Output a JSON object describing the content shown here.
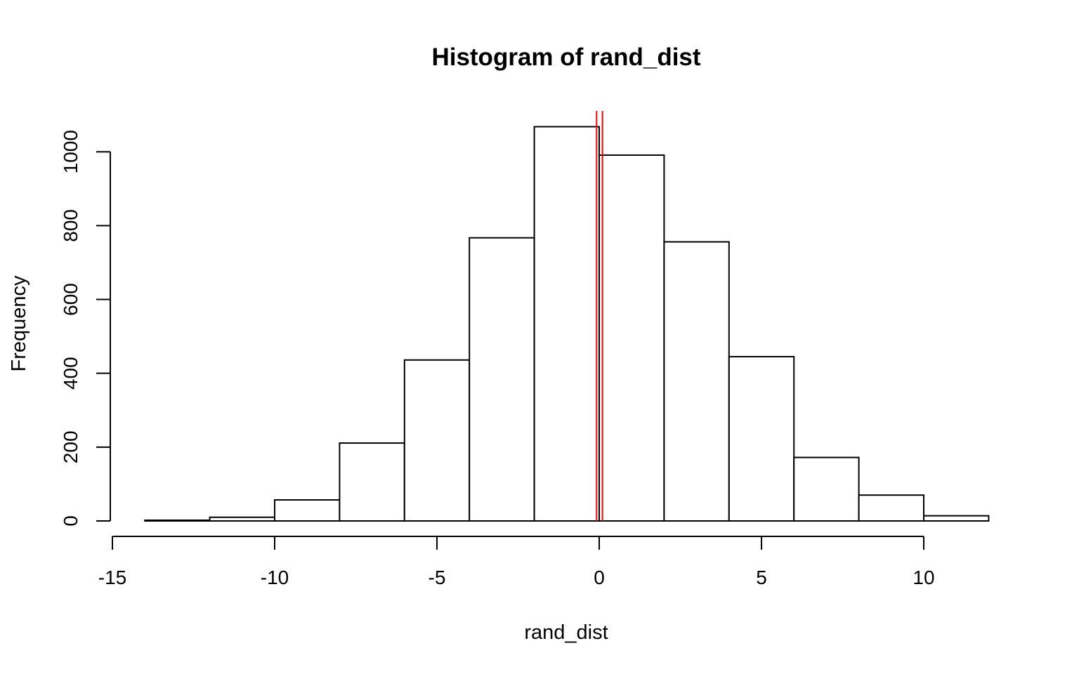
{
  "chart_data": {
    "type": "bar",
    "title": "Histogram of rand_dist",
    "xlabel": "rand_dist",
    "ylabel": "Frequency",
    "bins": [
      {
        "start": -14,
        "end": -12,
        "count": 2
      },
      {
        "start": -12,
        "end": -10,
        "count": 10
      },
      {
        "start": -10,
        "end": -8,
        "count": 57
      },
      {
        "start": -8,
        "end": -6,
        "count": 211
      },
      {
        "start": -6,
        "end": -4,
        "count": 436
      },
      {
        "start": -4,
        "end": -2,
        "count": 767
      },
      {
        "start": -2,
        "end": 0,
        "count": 1068
      },
      {
        "start": 0,
        "end": 2,
        "count": 991
      },
      {
        "start": 2,
        "end": 4,
        "count": 756
      },
      {
        "start": 4,
        "end": 6,
        "count": 445
      },
      {
        "start": 6,
        "end": 8,
        "count": 172
      },
      {
        "start": 8,
        "end": 10,
        "count": 70
      },
      {
        "start": 10,
        "end": 12,
        "count": 14
      }
    ],
    "xlim": [
      -15,
      12
    ],
    "ylim": [
      0,
      1100
    ],
    "x_ticks": [
      -15,
      -10,
      -5,
      0,
      5,
      10
    ],
    "x_tick_labels": [
      "-15",
      "-10",
      "-5",
      "0",
      "5",
      "10"
    ],
    "y_ticks": [
      0,
      200,
      400,
      600,
      800,
      1000
    ],
    "y_tick_labels": [
      "0",
      "200",
      "400",
      "600",
      "800",
      "1000"
    ],
    "reference_lines": [
      {
        "x": -0.08,
        "color": "#ff0000"
      },
      {
        "x": 0.1,
        "color": "#ff0000"
      }
    ],
    "grid": false,
    "legend": "none",
    "bar_fill": "#ffffff",
    "bar_stroke": "#000000"
  }
}
